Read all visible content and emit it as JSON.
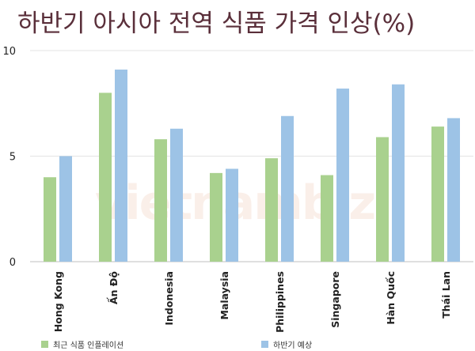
{
  "chart_data": {
    "type": "bar",
    "title": "하반기 아시아 전역 식품 가격 인상(%)",
    "categories": [
      "Hong Kong",
      "Ấn Độ",
      "Indonesia",
      "Malaysia",
      "Philippines",
      "Singapore",
      "Hàn Quốc",
      "Thái Lan"
    ],
    "series": [
      {
        "name": "최근 식품 인플레이션",
        "color": "#a9d18e",
        "values": [
          4.0,
          8.0,
          5.8,
          4.2,
          4.9,
          4.1,
          5.9,
          6.4
        ]
      },
      {
        "name": "하반기 예상",
        "color": "#9dc3e6",
        "values": [
          5.0,
          9.1,
          6.3,
          4.4,
          6.9,
          8.2,
          8.4,
          6.8
        ]
      }
    ],
    "ylim": [
      0,
      10
    ],
    "yticks": [
      0,
      5,
      10
    ],
    "grid": true,
    "legend_position": "bottom",
    "xlabel": "",
    "ylabel": ""
  },
  "watermark": "vietnambiz"
}
